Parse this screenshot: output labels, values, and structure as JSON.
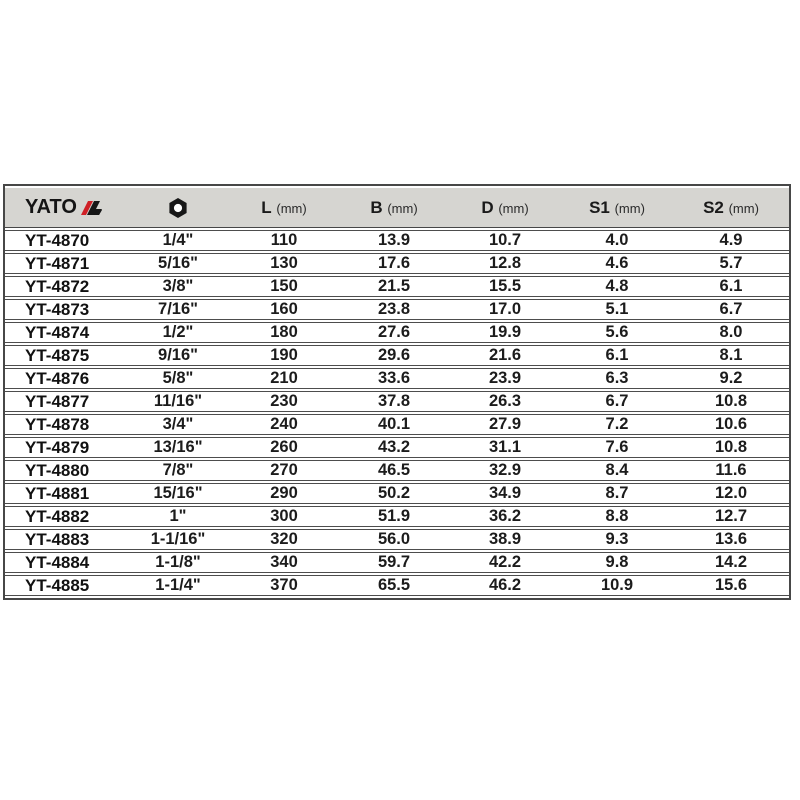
{
  "page": {
    "background": "#ffffff"
  },
  "brand": {
    "name": "YATO"
  },
  "colors": {
    "header_bg": "#d6d5d1",
    "border_dark": "#474747",
    "row_line": "#4d4d4d",
    "text": "#1c1c1c",
    "brand_red": "#cf2026",
    "brand_black": "#171717"
  },
  "chart_data": {
    "type": "table",
    "columns": [
      {
        "key": "model",
        "label": "YATO",
        "kind": "brand-logo"
      },
      {
        "key": "size",
        "label": "hex-nut-icon",
        "kind": "icon"
      },
      {
        "key": "L",
        "label": "L",
        "unit": "(mm)"
      },
      {
        "key": "B",
        "label": "B",
        "unit": "(mm)"
      },
      {
        "key": "D",
        "label": "D",
        "unit": "(mm)"
      },
      {
        "key": "S1",
        "label": "S1",
        "unit": "(mm)"
      },
      {
        "key": "S2",
        "label": "S2",
        "unit": "(mm)"
      }
    ],
    "rows": [
      [
        "YT-4870",
        "1/4\"",
        "110",
        "13.9",
        "10.7",
        "4.0",
        "4.9"
      ],
      [
        "YT-4871",
        "5/16\"",
        "130",
        "17.6",
        "12.8",
        "4.6",
        "5.7"
      ],
      [
        "YT-4872",
        "3/8\"",
        "150",
        "21.5",
        "15.5",
        "4.8",
        "6.1"
      ],
      [
        "YT-4873",
        "7/16\"",
        "160",
        "23.8",
        "17.0",
        "5.1",
        "6.7"
      ],
      [
        "YT-4874",
        "1/2\"",
        "180",
        "27.6",
        "19.9",
        "5.6",
        "8.0"
      ],
      [
        "YT-4875",
        "9/16\"",
        "190",
        "29.6",
        "21.6",
        "6.1",
        "8.1"
      ],
      [
        "YT-4876",
        "5/8\"",
        "210",
        "33.6",
        "23.9",
        "6.3",
        "9.2"
      ],
      [
        "YT-4877",
        "11/16\"",
        "230",
        "37.8",
        "26.3",
        "6.7",
        "10.8"
      ],
      [
        "YT-4878",
        "3/4\"",
        "240",
        "40.1",
        "27.9",
        "7.2",
        "10.6"
      ],
      [
        "YT-4879",
        "13/16\"",
        "260",
        "43.2",
        "31.1",
        "7.6",
        "10.8"
      ],
      [
        "YT-4880",
        "7/8\"",
        "270",
        "46.5",
        "32.9",
        "8.4",
        "11.6"
      ],
      [
        "YT-4881",
        "15/16\"",
        "290",
        "50.2",
        "34.9",
        "8.7",
        "12.0"
      ],
      [
        "YT-4882",
        "1\"",
        "300",
        "51.9",
        "36.2",
        "8.8",
        "12.7"
      ],
      [
        "YT-4883",
        "1-1/16\"",
        "320",
        "56.0",
        "38.9",
        "9.3",
        "13.6"
      ],
      [
        "YT-4884",
        "1-1/8\"",
        "340",
        "59.7",
        "42.2",
        "9.8",
        "14.2"
      ],
      [
        "YT-4885",
        "1-1/4\"",
        "370",
        "65.5",
        "46.2",
        "10.9",
        "15.6"
      ]
    ]
  }
}
